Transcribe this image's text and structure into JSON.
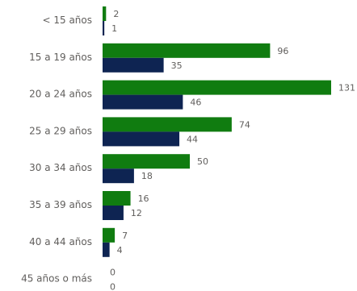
{
  "chart_data": {
    "type": "bar",
    "orientation": "horizontal",
    "title": "",
    "xlabel": "",
    "ylabel": "",
    "categories": [
      "< 15 años",
      "15 a 19 años",
      "20 a 24 años",
      "25 a 29 años",
      "30 a 34 años",
      "35 a 39 años",
      "40 a 44 años",
      "45 años o más"
    ],
    "series": [
      {
        "values": [
          2,
          96,
          131,
          74,
          50,
          16,
          7,
          0
        ],
        "color": "#107c10"
      },
      {
        "values": [
          1,
          35,
          46,
          44,
          18,
          12,
          4,
          0
        ],
        "color": "#0e2452"
      }
    ],
    "xlim": [
      0,
      131
    ],
    "grid": false,
    "legend": "none",
    "data_labels": true
  }
}
